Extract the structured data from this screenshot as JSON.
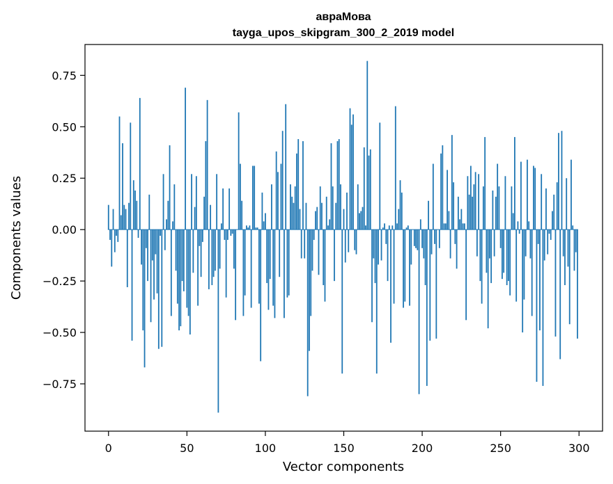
{
  "chart_data": {
    "type": "bar",
    "title": "авраМова",
    "subtitle": "tayga_upos_skipgram_300_2_2019 model",
    "xlabel": "Vector components",
    "ylabel": "Components values",
    "xlim": [
      -15,
      315
    ],
    "ylim": [
      -0.98,
      0.9
    ],
    "x_ticks": [
      0,
      50,
      100,
      150,
      200,
      250,
      300
    ],
    "x_tick_labels": [
      "0",
      "50",
      "100",
      "150",
      "200",
      "250",
      "300"
    ],
    "y_ticks": [
      -0.75,
      -0.5,
      -0.25,
      0.0,
      0.25,
      0.5,
      0.75
    ],
    "y_tick_labels": [
      "−0.75",
      "−0.50",
      "−0.25",
      "0.00",
      "0.25",
      "0.50",
      "0.75"
    ],
    "grid": false,
    "bar_color": "#1f77b4",
    "values": [
      0.12,
      -0.05,
      -0.18,
      0.1,
      -0.11,
      -0.03,
      -0.06,
      0.55,
      0.07,
      0.42,
      0.12,
      0.1,
      -0.28,
      0.13,
      0.52,
      -0.54,
      0.24,
      0.19,
      0.14,
      -0.04,
      0.64,
      -0.17,
      -0.49,
      -0.67,
      -0.09,
      -0.25,
      0.17,
      -0.45,
      -0.15,
      -0.34,
      -0.12,
      -0.31,
      -0.58,
      -0.03,
      -0.57,
      0.27,
      -0.1,
      0.05,
      0.14,
      0.41,
      -0.42,
      0.04,
      0.22,
      -0.2,
      -0.36,
      -0.49,
      -0.47,
      -0.25,
      -0.3,
      0.69,
      -0.38,
      -0.42,
      -0.51,
      0.27,
      -0.21,
      0.11,
      0.26,
      -0.37,
      -0.08,
      -0.23,
      -0.06,
      0.16,
      0.43,
      0.63,
      -0.29,
      0.12,
      -0.27,
      -0.23,
      -0.2,
      0.27,
      -0.89,
      -0.19,
      0.03,
      0.2,
      -0.05,
      -0.33,
      -0.05,
      0.2,
      -0.03,
      -0.02,
      -0.19,
      -0.44,
      0.0,
      0.57,
      0.32,
      0.14,
      -0.42,
      -0.32,
      0.02,
      0.01,
      0.02,
      -0.38,
      0.31,
      0.31,
      0.01,
      0.01,
      -0.36,
      -0.64,
      0.18,
      0.04,
      0.08,
      -0.26,
      -0.39,
      -0.24,
      0.22,
      -0.37,
      -0.43,
      0.38,
      0.28,
      -0.23,
      0.32,
      0.48,
      -0.43,
      0.61,
      -0.33,
      -0.32,
      0.22,
      0.16,
      0.13,
      0.21,
      0.37,
      0.44,
      0.1,
      -0.14,
      0.43,
      -0.14,
      0.13,
      -0.81,
      -0.59,
      -0.42,
      -0.2,
      -0.05,
      0.09,
      0.11,
      -0.22,
      0.21,
      0.13,
      -0.27,
      -0.35,
      0.16,
      0.02,
      0.05,
      0.42,
      0.21,
      -0.25,
      0.13,
      0.43,
      0.44,
      0.22,
      -0.7,
      0.1,
      -0.16,
      0.18,
      -0.11,
      0.59,
      0.51,
      0.56,
      -0.1,
      -0.12,
      0.22,
      0.08,
      0.09,
      0.11,
      0.4,
      0.02,
      0.82,
      0.36,
      0.39,
      -0.45,
      -0.14,
      -0.26,
      -0.7,
      -0.17,
      0.52,
      -0.15,
      0.01,
      0.03,
      -0.07,
      -0.25,
      0.02,
      -0.55,
      0.02,
      -0.36,
      0.6,
      0.03,
      0.1,
      0.24,
      0.18,
      -0.38,
      -0.35,
      0.01,
      0.02,
      -0.37,
      -0.17,
      0.0,
      -0.08,
      -0.09,
      -0.1,
      -0.8,
      0.05,
      -0.09,
      -0.14,
      -0.27,
      -0.76,
      0.14,
      -0.54,
      -0.12,
      0.32,
      -0.07,
      -0.53,
      0.0,
      -0.09,
      0.37,
      0.41,
      0.03,
      0.03,
      0.29,
      0.09,
      -0.14,
      0.46,
      0.23,
      -0.07,
      -0.19,
      0.16,
      0.05,
      0.1,
      0.03,
      0.03,
      -0.44,
      0.26,
      0.17,
      0.31,
      0.16,
      0.22,
      0.28,
      -0.13,
      0.27,
      -0.25,
      -0.36,
      0.21,
      0.45,
      -0.21,
      -0.48,
      -0.14,
      -0.26,
      0.19,
      -0.13,
      0.16,
      0.32,
      0.21,
      -0.09,
      -0.24,
      -0.21,
      0.26,
      -0.27,
      -0.25,
      -0.32,
      0.21,
      0.08,
      0.45,
      -0.35,
      0.04,
      -0.02,
      0.33,
      -0.5,
      -0.34,
      -0.13,
      0.34,
      0.04,
      -0.14,
      -0.42,
      0.31,
      0.3,
      -0.74,
      -0.07,
      -0.49,
      0.27,
      -0.76,
      -0.15,
      0.2,
      -0.12,
      -0.02,
      -0.05,
      0.09,
      0.17,
      -0.52,
      0.23,
      0.47,
      -0.63,
      0.48,
      -0.13,
      -0.27,
      0.25,
      -0.18,
      -0.46,
      0.34,
      0.02,
      -0.2,
      -0.11,
      -0.53
    ]
  }
}
